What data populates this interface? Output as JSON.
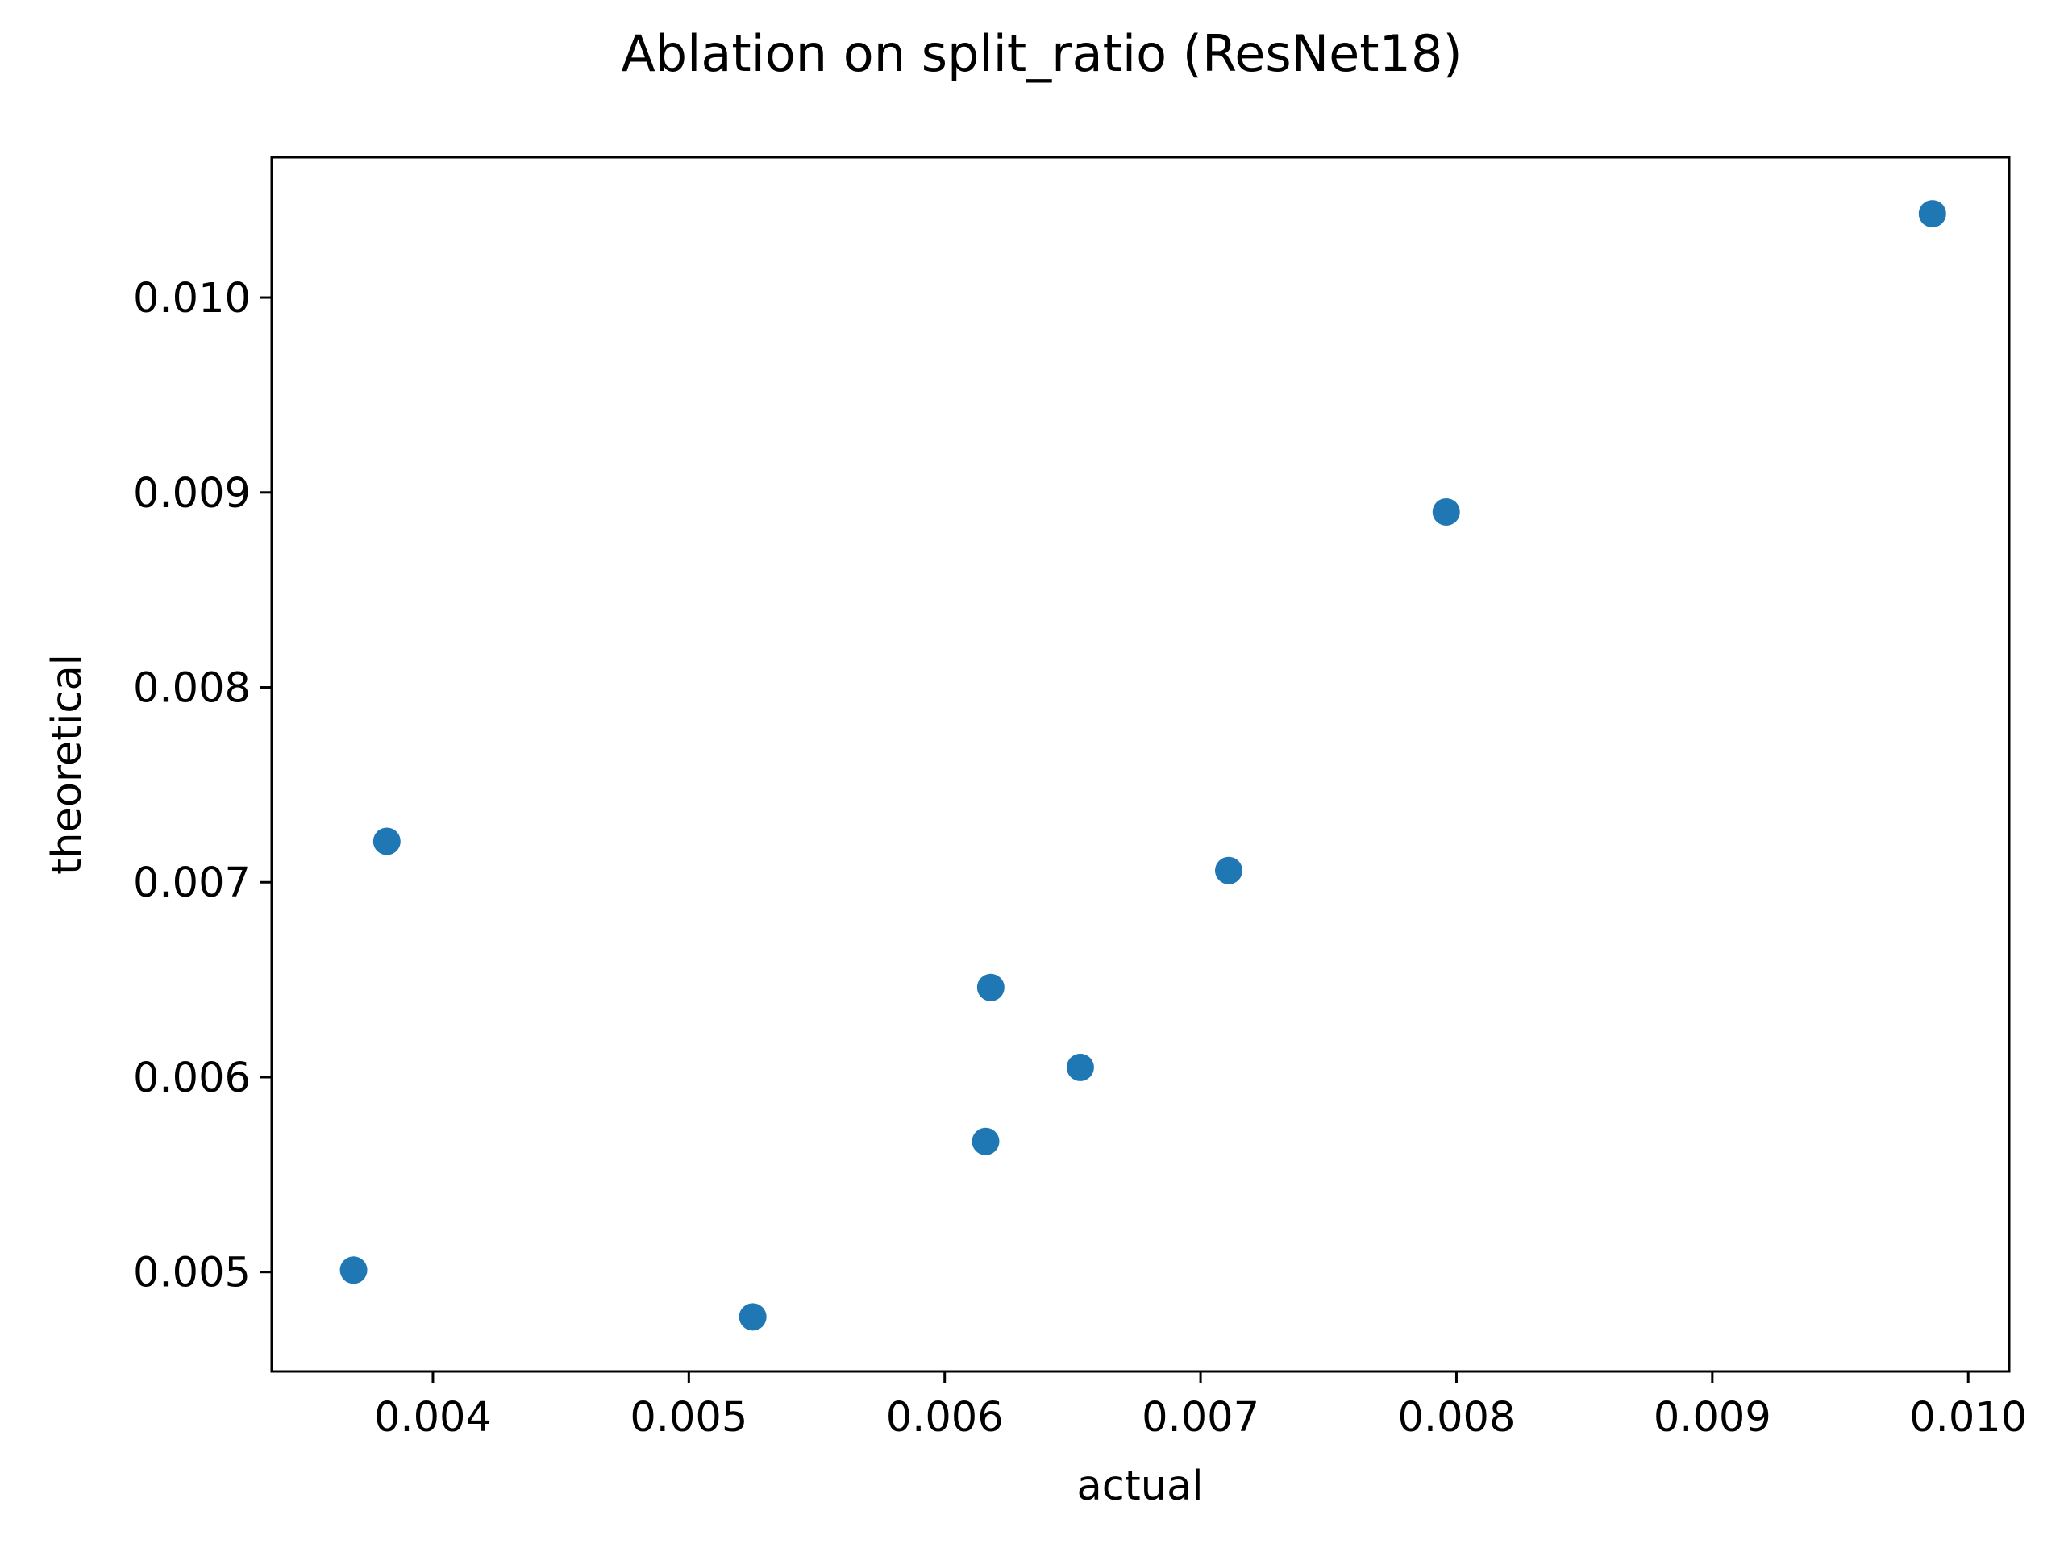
{
  "chart_data": {
    "type": "scatter",
    "title": "Ablation on split_ratio (ResNet18)",
    "xlabel": "actual",
    "ylabel": "theoretical",
    "xlim": [
      0.00337,
      0.01016
    ],
    "ylim": [
      0.00449,
      0.01072
    ],
    "xticks": [
      "0.004",
      "0.005",
      "0.006",
      "0.007",
      "0.008",
      "0.009",
      "0.010"
    ],
    "yticks": [
      "0.005",
      "0.006",
      "0.007",
      "0.008",
      "0.009",
      "0.010"
    ],
    "grid": false,
    "marker_color": "#1f77b4",
    "series": [
      {
        "points": [
          {
            "x": 0.00369,
            "y": 0.00501
          },
          {
            "x": 0.00382,
            "y": 0.00721
          },
          {
            "x": 0.00525,
            "y": 0.00477
          },
          {
            "x": 0.00616,
            "y": 0.00567
          },
          {
            "x": 0.00618,
            "y": 0.00646
          },
          {
            "x": 0.00653,
            "y": 0.00605
          },
          {
            "x": 0.00711,
            "y": 0.00706
          },
          {
            "x": 0.00796,
            "y": 0.0089
          },
          {
            "x": 0.00986,
            "y": 0.01043
          }
        ]
      }
    ]
  }
}
